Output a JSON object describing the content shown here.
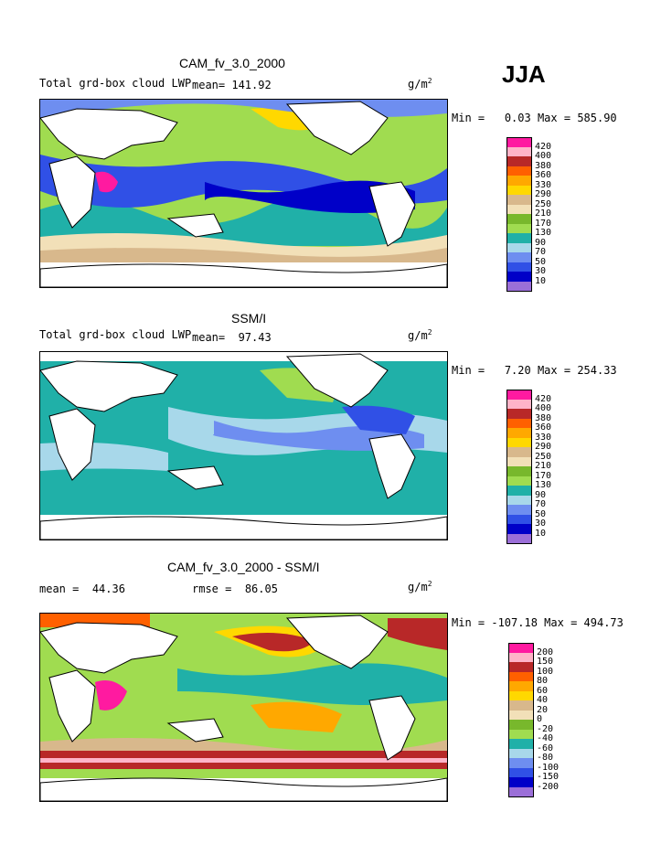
{
  "season": "JJA",
  "colors": {
    "pos": [
      "#9b6fd8",
      "#0000c8",
      "#3050e6",
      "#6e8ef0",
      "#a8d8ea",
      "#20b0a8",
      "#a0dc50",
      "#78b82c",
      "#f2e0b8",
      "#d8b88c",
      "#ffd800",
      "#ffa800",
      "#ff6000",
      "#b82828",
      "#ffb4c8",
      "#ff1aa0"
    ],
    "diff": [
      "#9b6fd8",
      "#0000c8",
      "#3050e6",
      "#6e8ef0",
      "#a8d8ea",
      "#20b0a8",
      "#a0dc50",
      "#78b82c",
      "#f2e0b8",
      "#d8b88c",
      "#ffd800",
      "#ffa800",
      "#ff6000",
      "#b82828",
      "#ffb4c8",
      "#ff1aa0"
    ]
  },
  "panels": [
    {
      "title": "CAM_fv_3.0_2000",
      "left_label": "Total grd-box cloud LWP",
      "mean_label": "mean=",
      "mean_value": "141.92",
      "units": "g/m",
      "units_sup": "2",
      "min_label": "Min =",
      "min_value": "0.03",
      "max_label": "Max =",
      "max_value": "585.90",
      "levels": [
        "420",
        "400",
        "380",
        "360",
        "330",
        "290",
        "250",
        "210",
        "170",
        "130",
        "90",
        "70",
        "50",
        "30",
        "10"
      ]
    },
    {
      "title": "SSM/I",
      "left_label": "Total grd-box cloud LWP",
      "mean_label": "mean=",
      "mean_value": "97.43",
      "units": "g/m",
      "units_sup": "2",
      "min_label": "Min =",
      "min_value": "7.20",
      "max_label": "Max =",
      "max_value": "254.33",
      "levels": [
        "420",
        "400",
        "380",
        "360",
        "330",
        "290",
        "250",
        "210",
        "170",
        "130",
        "90",
        "70",
        "50",
        "30",
        "10"
      ]
    },
    {
      "title": "CAM_fv_3.0_2000 - SSM/I",
      "mean_label": "mean =",
      "mean_value": "44.36",
      "rmse_label": "rmse =",
      "rmse_value": "86.05",
      "units": "g/m",
      "units_sup": "2",
      "min_label": "Min =",
      "min_value": "-107.18",
      "max_label": "Max =",
      "max_value": "494.73",
      "levels": [
        "200",
        "150",
        "100",
        "80",
        "60",
        "40",
        "20",
        "0",
        "-20",
        "-40",
        "-60",
        "-80",
        "-100",
        "-150",
        "-200"
      ]
    }
  ]
}
